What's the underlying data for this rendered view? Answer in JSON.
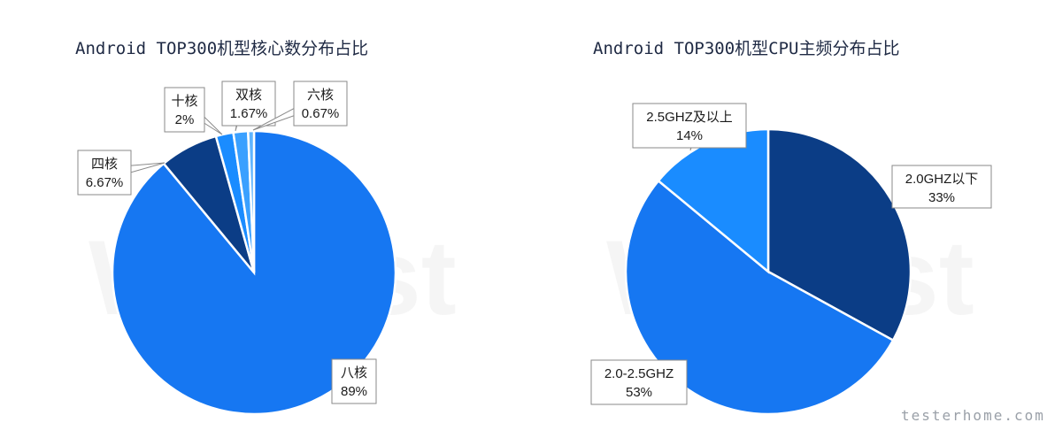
{
  "watermark": "WeTest",
  "footer": "testerhome.com",
  "chart_data": [
    {
      "type": "pie",
      "title": "Android TOP300机型核心数分布占比",
      "slices": [
        {
          "label": "八核",
          "value": 89,
          "display": "89%",
          "color": "#1677f2"
        },
        {
          "label": "四核",
          "value": 6.67,
          "display": "6.67%",
          "color": "#0b3d86"
        },
        {
          "label": "十核",
          "value": 2,
          "display": "2%",
          "color": "#1a8cff"
        },
        {
          "label": "双核",
          "value": 1.67,
          "display": "1.67%",
          "color": "#3aa0ff"
        },
        {
          "label": "六核",
          "value": 0.67,
          "display": "0.67%",
          "color": "#5fb4ff"
        }
      ]
    },
    {
      "type": "pie",
      "title": "Android TOP300机型CPU主频分布占比",
      "slices": [
        {
          "label": "2.0GHZ以下",
          "value": 33,
          "display": "33%",
          "color": "#0b3d86"
        },
        {
          "label": "2.0-2.5GHZ",
          "value": 53,
          "display": "53%",
          "color": "#1677f2"
        },
        {
          "label": "2.5GHZ及以上",
          "value": 14,
          "display": "14%",
          "color": "#1a8cff"
        }
      ]
    }
  ]
}
